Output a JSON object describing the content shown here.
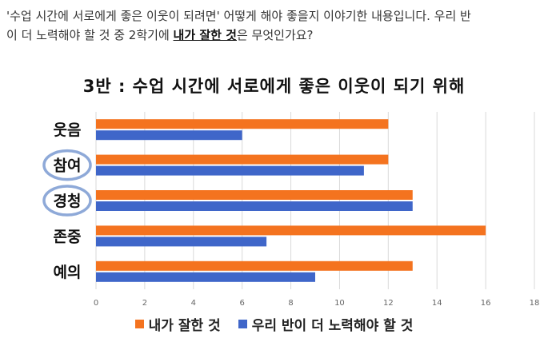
{
  "question": {
    "line1": "'수업 시간에 서로에게 좋은 이웃이 되려면' 어떻게 해야 좋을지 이야기한 내용입니다. 우리 반",
    "line2_pre": "이 더 노력해야 할 것 중 2학기에 ",
    "line2_em": "내가 잘한 것",
    "line2_post": "은 무엇인가요?"
  },
  "colors": {
    "series_orange": "#f4731f",
    "series_blue": "#3f66c9",
    "circle": "#8ea9d8",
    "grid": "#d9d9d9"
  },
  "chart_data": {
    "type": "bar",
    "orientation": "horizontal",
    "title": "3반 : 수업 시간에 서로에게 좋은 이웃이 되기 위해",
    "categories": [
      "웃음",
      "참여",
      "경청",
      "존중",
      "예의"
    ],
    "circled_categories": [
      "참여",
      "경청"
    ],
    "series": [
      {
        "name": "내가 잘한 것",
        "values": [
          12,
          12,
          13,
          16,
          13
        ]
      },
      {
        "name": "우리 반이 더 노력해야 할 것",
        "values": [
          6,
          11,
          13,
          7,
          9
        ]
      }
    ],
    "xlim": [
      0,
      18
    ],
    "xticks": [
      0,
      2,
      4,
      6,
      8,
      10,
      12,
      14,
      16,
      18
    ],
    "grid": true,
    "legend": "bottom"
  }
}
